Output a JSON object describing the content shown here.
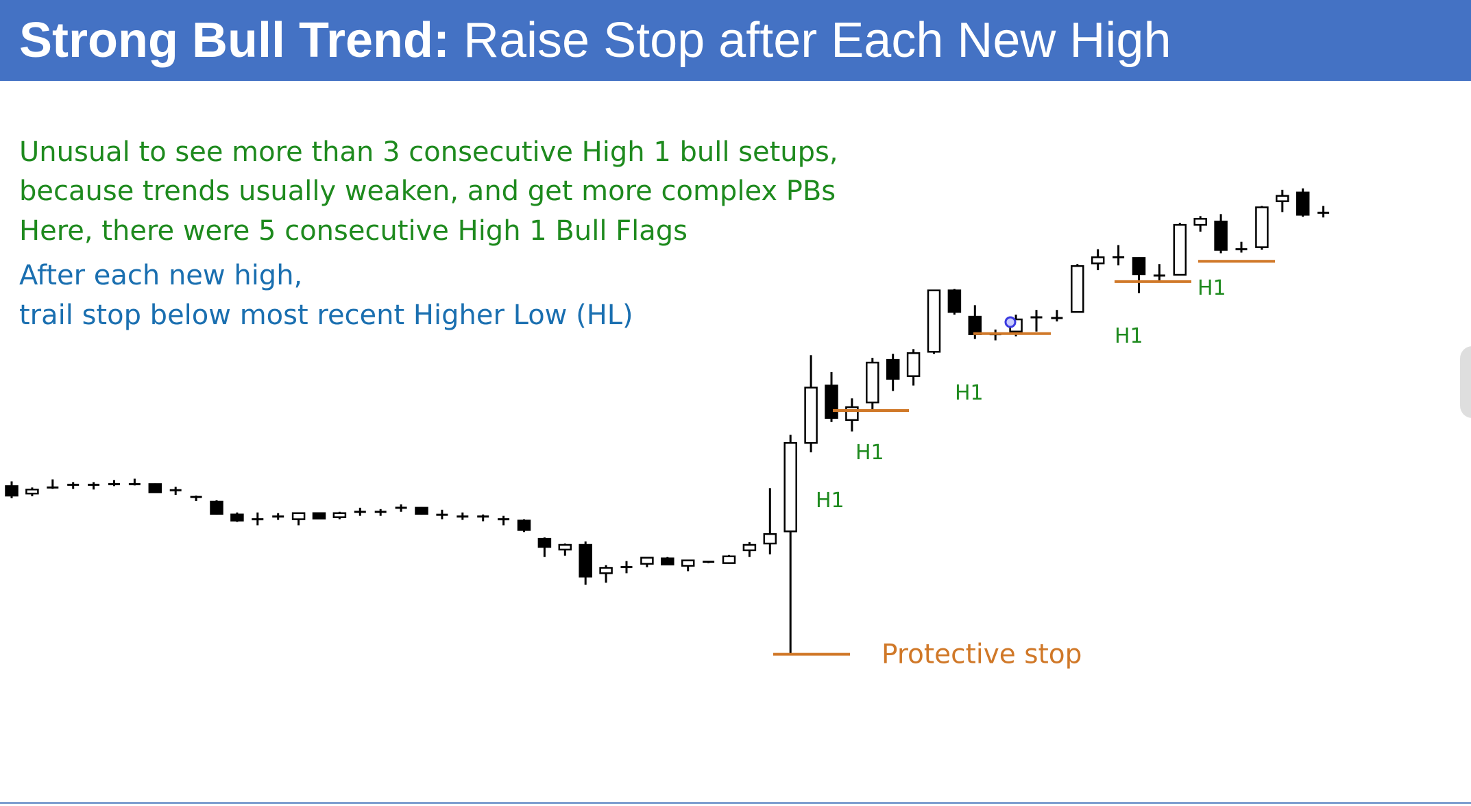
{
  "title": {
    "bold": "Strong Bull Trend:",
    "normal": "Raise Stop after Each New High"
  },
  "notes": {
    "green": [
      "Unusual to see more than 3 consecutive High 1 bull setups,",
      "because trends usually weaken, and get more complex PBs",
      "Here, there were 5 consecutive High 1 Bull Flags"
    ],
    "blue": [
      "After each new high,",
      "trail stop below most recent Higher Low (HL)"
    ]
  },
  "colors": {
    "header": "#4472c4",
    "green_text": "#1e8a1e",
    "blue_text": "#1a6fb0",
    "stop_line": "#d07828",
    "candle": "#000000",
    "cursor": "#3a3ae0"
  },
  "icons": {
    "side_tab": "more-icon"
  },
  "chart_data": {
    "type": "candlestick",
    "ylim": [
      0,
      100
    ],
    "candles": [
      {
        "o": 55.4,
        "h": 56.1,
        "l": 53.6,
        "c": 54.0
      },
      {
        "o": 54.3,
        "h": 55.2,
        "l": 53.9,
        "c": 54.9
      },
      {
        "o": 55.2,
        "h": 56.4,
        "l": 55.0,
        "c": 55.2
      },
      {
        "o": 55.6,
        "h": 56.0,
        "l": 55.0,
        "c": 55.6
      },
      {
        "o": 55.6,
        "h": 56.0,
        "l": 54.9,
        "c": 55.6
      },
      {
        "o": 55.9,
        "h": 56.3,
        "l": 55.4,
        "c": 55.5
      },
      {
        "o": 55.7,
        "h": 56.5,
        "l": 55.5,
        "c": 55.7
      },
      {
        "o": 55.7,
        "h": 55.8,
        "l": 54.5,
        "c": 54.5
      },
      {
        "o": 54.8,
        "h": 55.3,
        "l": 54.1,
        "c": 54.8
      },
      {
        "o": 53.8,
        "h": 54.0,
        "l": 53.2,
        "c": 53.8
      },
      {
        "o": 53.1,
        "h": 53.3,
        "l": 51.2,
        "c": 51.3
      },
      {
        "o": 51.2,
        "h": 51.5,
        "l": 50.1,
        "c": 50.3
      },
      {
        "o": 50.5,
        "h": 51.5,
        "l": 49.6,
        "c": 50.5
      },
      {
        "o": 50.9,
        "h": 51.4,
        "l": 50.4,
        "c": 50.9
      },
      {
        "o": 50.5,
        "h": 51.4,
        "l": 49.6,
        "c": 51.4
      },
      {
        "o": 51.4,
        "h": 51.5,
        "l": 50.6,
        "c": 50.6
      },
      {
        "o": 50.8,
        "h": 51.6,
        "l": 50.5,
        "c": 51.4
      },
      {
        "o": 51.6,
        "h": 52.2,
        "l": 51.0,
        "c": 51.6
      },
      {
        "o": 51.6,
        "h": 52.0,
        "l": 51.0,
        "c": 51.6
      },
      {
        "o": 52.2,
        "h": 52.7,
        "l": 51.6,
        "c": 52.2
      },
      {
        "o": 52.2,
        "h": 52.3,
        "l": 51.2,
        "c": 51.3
      },
      {
        "o": 51.3,
        "h": 51.9,
        "l": 50.5,
        "c": 51.0
      },
      {
        "o": 50.9,
        "h": 51.5,
        "l": 50.4,
        "c": 50.9
      },
      {
        "o": 50.9,
        "h": 51.2,
        "l": 50.2,
        "c": 50.9
      },
      {
        "o": 50.5,
        "h": 51.0,
        "l": 49.6,
        "c": 50.5
      },
      {
        "o": 50.3,
        "h": 50.5,
        "l": 48.6,
        "c": 48.9
      },
      {
        "o": 47.6,
        "h": 47.8,
        "l": 44.9,
        "c": 46.4
      },
      {
        "o": 46.0,
        "h": 46.9,
        "l": 45.1,
        "c": 46.7
      },
      {
        "o": 46.7,
        "h": 47.2,
        "l": 40.8,
        "c": 42.0
      },
      {
        "o": 42.5,
        "h": 43.7,
        "l": 41.1,
        "c": 43.3
      },
      {
        "o": 43.4,
        "h": 44.3,
        "l": 42.5,
        "c": 43.4
      },
      {
        "o": 43.9,
        "h": 44.9,
        "l": 43.4,
        "c": 44.8
      },
      {
        "o": 44.7,
        "h": 44.9,
        "l": 43.8,
        "c": 43.8
      },
      {
        "o": 43.6,
        "h": 44.4,
        "l": 42.8,
        "c": 44.4
      },
      {
        "o": 44.2,
        "h": 44.3,
        "l": 44.0,
        "c": 44.2
      },
      {
        "o": 44.0,
        "h": 45.2,
        "l": 43.9,
        "c": 45.0
      },
      {
        "o": 45.9,
        "h": 47.1,
        "l": 44.9,
        "c": 46.7
      },
      {
        "o": 46.9,
        "h": 55.1,
        "l": 45.3,
        "c": 48.3
      },
      {
        "o": 48.7,
        "h": 63.0,
        "l": 30.4,
        "c": 61.8
      },
      {
        "o": 61.8,
        "h": 74.8,
        "l": 60.4,
        "c": 70.0
      },
      {
        "o": 70.3,
        "h": 72.3,
        "l": 64.9,
        "c": 65.5
      },
      {
        "o": 65.2,
        "h": 68.4,
        "l": 63.5,
        "c": 67.1
      },
      {
        "o": 67.8,
        "h": 74.4,
        "l": 66.6,
        "c": 73.7
      },
      {
        "o": 74.1,
        "h": 75.0,
        "l": 69.5,
        "c": 71.3
      },
      {
        "o": 71.7,
        "h": 75.7,
        "l": 70.3,
        "c": 75.1
      },
      {
        "o": 75.3,
        "h": 84.4,
        "l": 75.0,
        "c": 84.4
      },
      {
        "o": 84.4,
        "h": 84.6,
        "l": 80.8,
        "c": 81.2
      },
      {
        "o": 80.5,
        "h": 82.2,
        "l": 77.2,
        "c": 77.9
      },
      {
        "o": 77.9,
        "h": 78.6,
        "l": 77.0,
        "c": 77.9
      },
      {
        "o": 78.3,
        "h": 80.8,
        "l": 77.6,
        "c": 80.1
      },
      {
        "o": 80.4,
        "h": 81.5,
        "l": 78.3,
        "c": 80.4
      },
      {
        "o": 80.3,
        "h": 81.5,
        "l": 79.8,
        "c": 80.3
      },
      {
        "o": 81.2,
        "h": 88.3,
        "l": 81.2,
        "c": 88.0
      },
      {
        "o": 88.4,
        "h": 90.5,
        "l": 87.4,
        "c": 89.3
      },
      {
        "o": 89.3,
        "h": 91.1,
        "l": 88.1,
        "c": 89.3
      },
      {
        "o": 89.2,
        "h": 89.3,
        "l": 84.0,
        "c": 86.8
      },
      {
        "o": 86.6,
        "h": 88.3,
        "l": 85.8,
        "c": 86.6
      },
      {
        "o": 86.7,
        "h": 94.4,
        "l": 86.7,
        "c": 94.1
      },
      {
        "o": 94.1,
        "h": 95.4,
        "l": 93.1,
        "c": 95.0
      },
      {
        "o": 94.6,
        "h": 95.7,
        "l": 89.9,
        "c": 90.4
      },
      {
        "o": 90.4,
        "h": 91.6,
        "l": 90.0,
        "c": 90.6
      },
      {
        "o": 90.8,
        "h": 96.9,
        "l": 90.4,
        "c": 96.7
      },
      {
        "o": 97.6,
        "h": 99.3,
        "l": 96.0,
        "c": 98.4
      },
      {
        "o": 98.9,
        "h": 99.5,
        "l": 95.3,
        "c": 95.6
      },
      {
        "o": 95.9,
        "h": 96.9,
        "l": 95.2,
        "c": 95.9
      }
    ],
    "stops": [
      {
        "label": "H1",
        "price": 66.6
      },
      {
        "label": "H1",
        "price": 78.0
      },
      {
        "label": "H1",
        "price": 85.7
      },
      {
        "label": "H1",
        "price": 88.7
      }
    ],
    "protective_stop": {
      "label": "Protective stop",
      "price": 30.5
    },
    "cursor": {
      "price": 79.7
    }
  }
}
